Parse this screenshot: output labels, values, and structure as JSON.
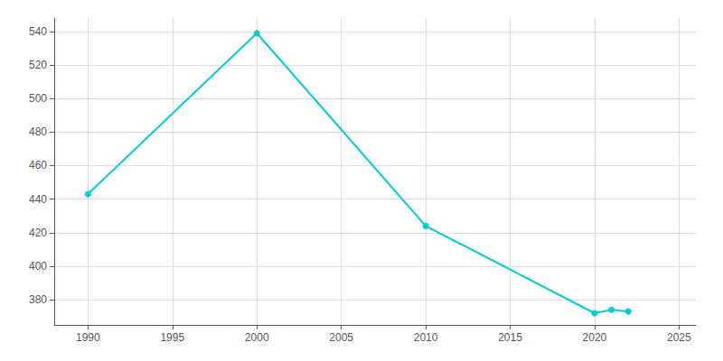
{
  "chart_data": {
    "type": "line",
    "x": [
      1990,
      2000,
      2010,
      2020,
      2021,
      2022
    ],
    "values": [
      443,
      539,
      424,
      372,
      374,
      373
    ],
    "color": "#00CED1",
    "marker": "circle",
    "xlim": [
      1988,
      2026
    ],
    "ylim": [
      365,
      548
    ],
    "xticks": [
      1990,
      1995,
      2000,
      2005,
      2010,
      2015,
      2020,
      2025
    ],
    "yticks": [
      380,
      400,
      420,
      440,
      460,
      480,
      500,
      520,
      540
    ],
    "grid": true
  }
}
